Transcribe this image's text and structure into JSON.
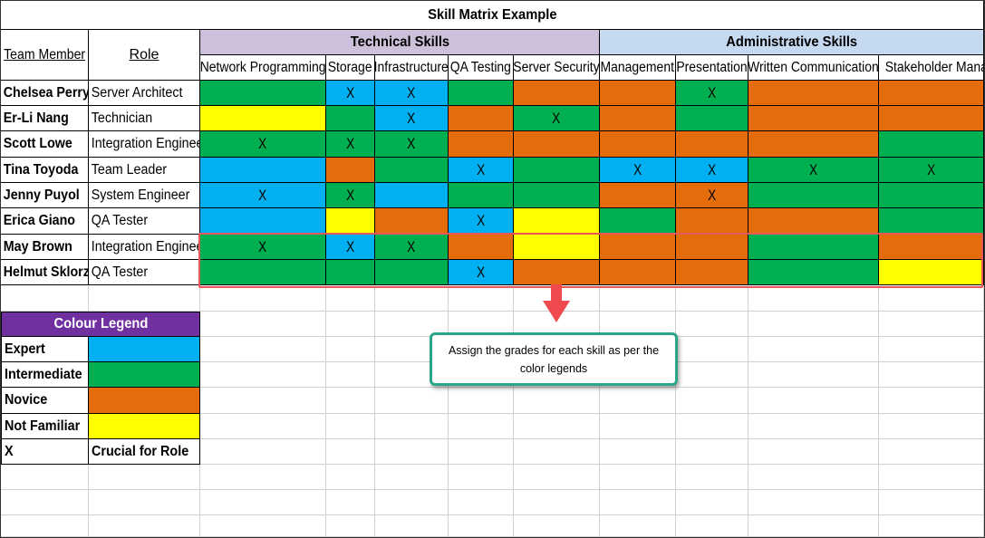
{
  "title": "Skill Matrix Example",
  "headers": {
    "member": "Team Member",
    "role": "Role",
    "technical": "Technical Skills",
    "administrative": "Administrative Skills"
  },
  "skills": [
    "Network Programming",
    "Storage",
    "Infrastructure",
    "QA Testing",
    "Server Security",
    "Management",
    "Presentation",
    "Written Communication",
    "Stakeholder Manag"
  ],
  "rows": [
    {
      "name": "Chelsea Perry",
      "role": "Server Architect",
      "levels": [
        "I",
        "E",
        "E",
        "I",
        "N",
        "N",
        "I",
        "N",
        "N"
      ],
      "crucial": [
        false,
        true,
        true,
        false,
        false,
        false,
        true,
        false,
        false
      ]
    },
    {
      "name": "Er-Li Nang",
      "role": "Technician",
      "levels": [
        "F",
        "I",
        "E",
        "N",
        "I",
        "N",
        "I",
        "N",
        "N"
      ],
      "crucial": [
        false,
        false,
        true,
        false,
        true,
        false,
        false,
        false,
        false
      ]
    },
    {
      "name": "Scott Lowe",
      "role": "Integration Engineer",
      "levels": [
        "I",
        "I",
        "I",
        "N",
        "N",
        "N",
        "N",
        "N",
        "I"
      ],
      "crucial": [
        true,
        true,
        true,
        false,
        false,
        false,
        false,
        false,
        false
      ]
    },
    {
      "name": "Tina Toyoda",
      "role": "Team Leader",
      "levels": [
        "E",
        "N",
        "I",
        "E",
        "I",
        "E",
        "E",
        "I",
        "I"
      ],
      "crucial": [
        false,
        false,
        false,
        true,
        false,
        true,
        true,
        true,
        true
      ]
    },
    {
      "name": "Jenny Puyol",
      "role": "System Engineer",
      "levels": [
        "E",
        "I",
        "E",
        "I",
        "I",
        "N",
        "N",
        "I",
        "I"
      ],
      "crucial": [
        true,
        true,
        false,
        false,
        false,
        false,
        true,
        false,
        false
      ]
    },
    {
      "name": "Erica Giano",
      "role": "QA Tester",
      "levels": [
        "E",
        "F",
        "N",
        "E",
        "F",
        "I",
        "N",
        "N",
        "I"
      ],
      "crucial": [
        false,
        false,
        false,
        true,
        false,
        false,
        false,
        false,
        false
      ]
    },
    {
      "name": "May Brown",
      "role": "Integration Engineer",
      "levels": [
        "I",
        "E",
        "I",
        "N",
        "F",
        "N",
        "N",
        "I",
        "N"
      ],
      "crucial": [
        true,
        true,
        true,
        false,
        false,
        false,
        false,
        false,
        false
      ]
    },
    {
      "name": "Helmut Sklorz",
      "role": "QA Tester",
      "levels": [
        "I",
        "I",
        "I",
        "E",
        "N",
        "N",
        "N",
        "I",
        "F"
      ],
      "crucial": [
        false,
        false,
        false,
        true,
        false,
        false,
        false,
        false,
        false
      ]
    }
  ],
  "crucial_mark": "X",
  "legend": {
    "title": "Colour Legend",
    "items": [
      {
        "label": "Expert",
        "color": "#00b0f0"
      },
      {
        "label": "Intermediate",
        "color": "#00b050"
      },
      {
        "label": "Novice",
        "color": "#e46c0a"
      },
      {
        "label": "Not Familiar",
        "color": "#ffff00"
      }
    ],
    "mark_symbol": "X",
    "mark_meaning": "Crucial for Role"
  },
  "level_colors": {
    "E": "#00b0f0",
    "I": "#00b050",
    "N": "#e46c0a",
    "F": "#ffff00"
  },
  "colors": {
    "technical_header": "#ccc0da",
    "administrative_header": "#c5d9f1",
    "legend_header": "#7030a0",
    "highlight": "#e8575a",
    "callout_border": "#2aa58a"
  },
  "callout": {
    "text": "Assign the grades for each skill as per the color legends"
  }
}
